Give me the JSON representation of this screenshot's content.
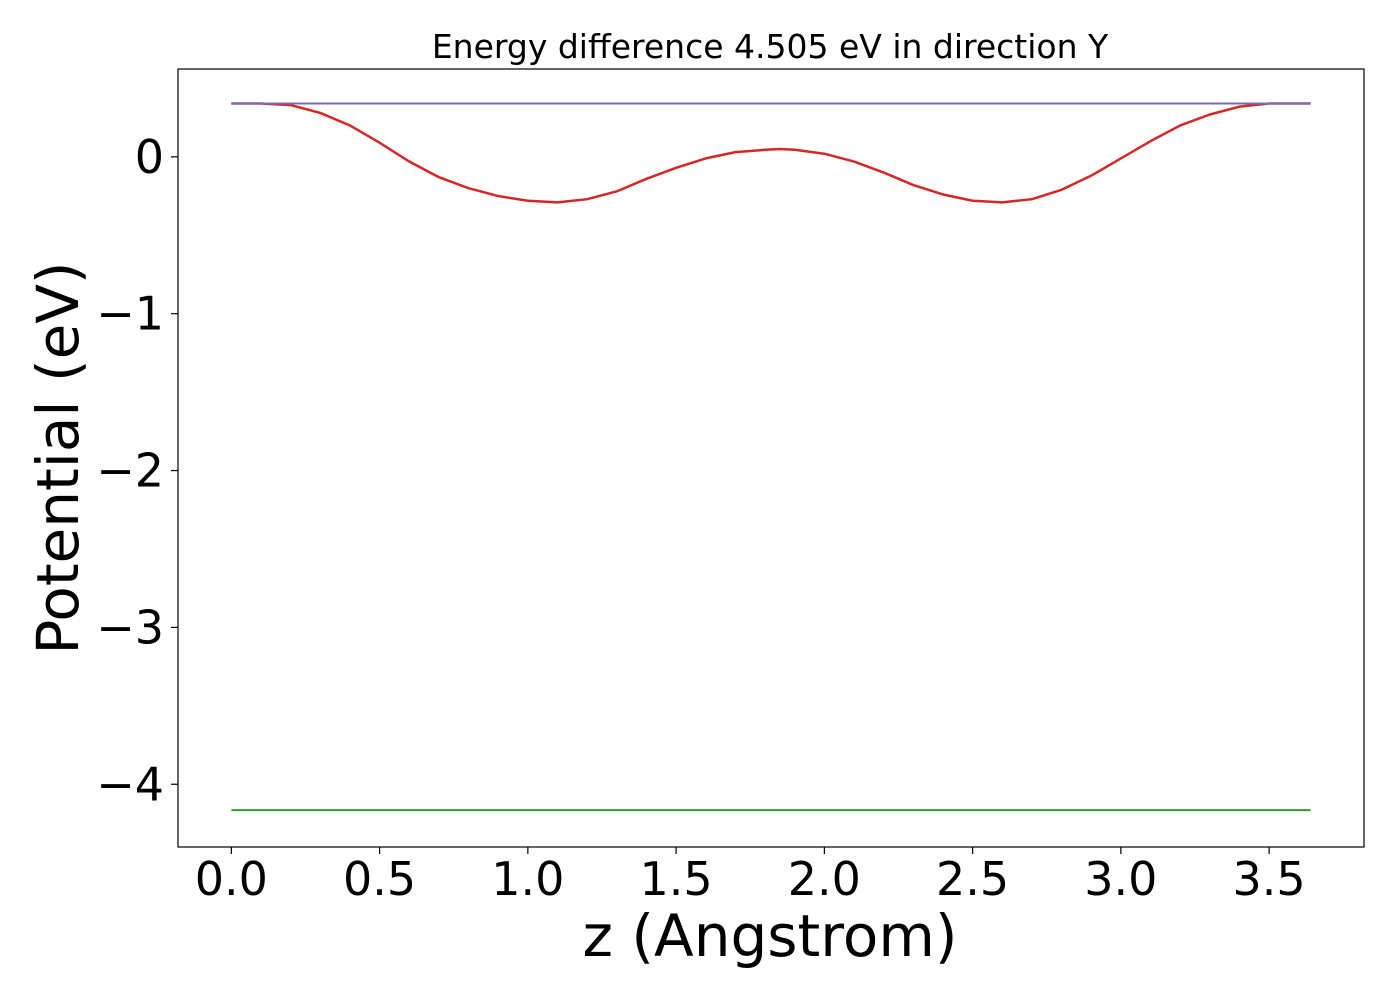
{
  "chart_data": {
    "type": "line",
    "title": "Energy difference 4.505 eV in direction Y",
    "xlabel": "z (Angstrom)",
    "ylabel": "Potential (eV)",
    "xlim": [
      -0.18,
      3.82
    ],
    "ylim": [
      -4.4,
      0.56
    ],
    "xticks": [
      {
        "value": 0.0,
        "label": "0.0"
      },
      {
        "value": 0.5,
        "label": "0.5"
      },
      {
        "value": 1.0,
        "label": "1.0"
      },
      {
        "value": 1.5,
        "label": "1.5"
      },
      {
        "value": 2.0,
        "label": "2.0"
      },
      {
        "value": 2.5,
        "label": "2.5"
      },
      {
        "value": 3.0,
        "label": "3.0"
      },
      {
        "value": 3.5,
        "label": "3.5"
      }
    ],
    "yticks": [
      {
        "value": 0,
        "label": "0"
      },
      {
        "value": -1,
        "label": "−1"
      },
      {
        "value": -2,
        "label": "−2"
      },
      {
        "value": -3,
        "label": "−3"
      },
      {
        "value": -4,
        "label": "−4"
      }
    ],
    "grid": false,
    "legend": "none",
    "series": [
      {
        "color": "#1f77b4",
        "x": [
          0.0,
          3.64
        ],
        "y": [
          0.34,
          0.34
        ]
      },
      {
        "color": "#2ca02c",
        "x": [
          0.0,
          3.64
        ],
        "y": [
          -4.165,
          -4.165
        ]
      },
      {
        "color": "#d62728",
        "x": [
          0.0,
          0.1,
          0.2,
          0.3,
          0.4,
          0.5,
          0.6,
          0.7,
          0.8,
          0.9,
          1.0,
          1.1,
          1.2,
          1.3,
          1.4,
          1.5,
          1.6,
          1.7,
          1.8,
          1.85,
          1.9,
          2.0,
          2.1,
          2.2,
          2.3,
          2.4,
          2.5,
          2.6,
          2.7,
          2.8,
          2.9,
          3.0,
          3.1,
          3.2,
          3.3,
          3.4,
          3.5,
          3.64
        ],
        "y": [
          0.34,
          0.34,
          0.33,
          0.28,
          0.2,
          0.09,
          -0.03,
          -0.13,
          -0.2,
          -0.25,
          -0.28,
          -0.29,
          -0.27,
          -0.22,
          -0.14,
          -0.07,
          -0.01,
          0.03,
          0.045,
          0.05,
          0.045,
          0.02,
          -0.03,
          -0.1,
          -0.18,
          -0.24,
          -0.28,
          -0.29,
          -0.27,
          -0.21,
          -0.12,
          -0.01,
          0.1,
          0.2,
          0.27,
          0.32,
          0.34,
          0.34
        ]
      },
      {
        "color": "#7570b3",
        "x": [
          0.0,
          0.15,
          3.5,
          3.64
        ],
        "y": [
          0.34,
          0.34,
          0.34,
          0.34
        ]
      }
    ]
  }
}
